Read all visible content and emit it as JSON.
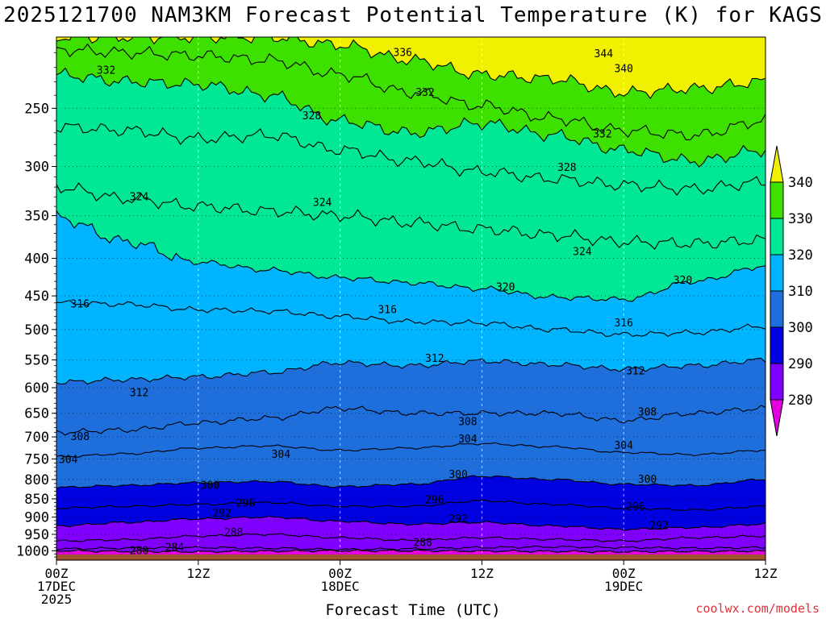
{
  "title": "2025121700 NAM3KM Forecast Potential Temperature (K) for KAGS",
  "credit": "coolwx.com/models",
  "chart_data": {
    "type": "contour",
    "title": "2025121700 NAM3KM Forecast Potential Temperature (K) for KAGS",
    "xlabel": "Forecast Time (UTC)",
    "ylabel": "",
    "units": "K",
    "y_scale": "log-pressure",
    "ylim": [
      1030,
      200
    ],
    "y_ticks": [
      "250",
      "300",
      "350",
      "400",
      "450",
      "500",
      "550",
      "600",
      "650",
      "700",
      "750",
      "800",
      "850",
      "900",
      "950",
      "1000"
    ],
    "x_range_hours": [
      0,
      60
    ],
    "x_ticks": [
      {
        "hour": 0,
        "lines": [
          "00Z",
          "17DEC",
          "2025"
        ]
      },
      {
        "hour": 12,
        "lines": [
          "12Z"
        ]
      },
      {
        "hour": 24,
        "lines": [
          "00Z",
          "18DEC"
        ]
      },
      {
        "hour": 36,
        "lines": [
          "12Z"
        ]
      },
      {
        "hour": 48,
        "lines": [
          "00Z",
          "19DEC"
        ]
      },
      {
        "hour": 60,
        "lines": [
          "12Z"
        ]
      }
    ],
    "grid": true,
    "colorbar": {
      "placement": "right",
      "ticks": [
        "340",
        "330",
        "320",
        "310",
        "300",
        "290",
        "280"
      ],
      "bands": [
        {
          "min": 270,
          "max": 280,
          "color": "#e000e0"
        },
        {
          "min": 280,
          "max": 290,
          "color": "#8000ff"
        },
        {
          "min": 290,
          "max": 300,
          "color": "#0000e0"
        },
        {
          "min": 300,
          "max": 310,
          "color": "#1e6edc"
        },
        {
          "min": 310,
          "max": 320,
          "color": "#00b4ff"
        },
        {
          "min": 320,
          "max": 330,
          "color": "#00e896"
        },
        {
          "min": 330,
          "max": 340,
          "color": "#3ee000"
        },
        {
          "min": 340,
          "max": 350,
          "color": "#f0f000"
        }
      ]
    },
    "ground_color": "#a0522d",
    "contour_interval": 4,
    "hours": [
      0,
      6,
      12,
      18,
      24,
      30,
      36,
      42,
      48,
      54,
      60
    ],
    "levels": [
      {
        "theta": 280,
        "pressure": [
          1000,
          1002,
          1003,
          1001,
          1000,
          1000,
          1001,
          1002,
          1003,
          1002,
          1001
        ]
      },
      {
        "theta": 284,
        "pressure": [
          994,
          992,
          990,
          992,
          996,
          994,
          990,
          988,
          990,
          992,
          990
        ]
      },
      {
        "theta": 288,
        "pressure": [
          970,
          966,
          955,
          950,
          960,
          968,
          960,
          965,
          970,
          960,
          955
        ]
      },
      {
        "theta": 292,
        "pressure": [
          925,
          915,
          905,
          900,
          912,
          920,
          915,
          925,
          935,
          930,
          920
        ]
      },
      {
        "theta": 296,
        "pressure": [
          875,
          870,
          865,
          860,
          870,
          870,
          855,
          865,
          875,
          880,
          870
        ]
      },
      {
        "theta": 300,
        "pressure": [
          820,
          815,
          808,
          805,
          818,
          812,
          792,
          800,
          812,
          815,
          800
        ]
      },
      {
        "theta": 304,
        "pressure": [
          745,
          738,
          725,
          720,
          730,
          725,
          715,
          722,
          735,
          740,
          730
        ]
      },
      {
        "theta": 308,
        "pressure": [
          690,
          685,
          670,
          660,
          640,
          650,
          650,
          650,
          665,
          650,
          640
        ]
      },
      {
        "theta": 312,
        "pressure": [
          590,
          585,
          580,
          572,
          555,
          560,
          552,
          558,
          566,
          560,
          550
        ]
      },
      {
        "theta": 316,
        "pressure": [
          460,
          462,
          470,
          472,
          480,
          488,
          490,
          500,
          508,
          505,
          495
        ]
      },
      {
        "theta": 320,
        "pressure": [
          352,
          380,
          405,
          415,
          425,
          432,
          440,
          452,
          455,
          430,
          410
        ]
      },
      {
        "theta": 324,
        "pressure": [
          320,
          332,
          340,
          345,
          350,
          358,
          365,
          372,
          380,
          382,
          378
        ]
      },
      {
        "theta": 328,
        "pressure": [
          265,
          268,
          275,
          272,
          285,
          295,
          305,
          312,
          318,
          322,
          315
        ]
      },
      {
        "theta": 332,
        "pressure": [
          225,
          230,
          232,
          240,
          260,
          270,
          262,
          272,
          285,
          295,
          285
        ]
      },
      {
        "theta": 336,
        "pressure": [
          208,
          210,
          212,
          215,
          225,
          238,
          248,
          258,
          268,
          272,
          260
        ]
      },
      {
        "theta": 340,
        "pressure": [
          200,
          200,
          200,
          200,
          205,
          215,
          225,
          228,
          238,
          235,
          230
        ]
      }
    ],
    "contour_labels": [
      {
        "text": "332",
        "hour": 4.2,
        "pressure": 222
      },
      {
        "text": "336",
        "hour": 29.3,
        "pressure": 210
      },
      {
        "text": "344",
        "hour": 46.3,
        "pressure": 211
      },
      {
        "text": "340",
        "hour": 48.0,
        "pressure": 221
      },
      {
        "text": "332",
        "hour": 31.2,
        "pressure": 238
      },
      {
        "text": "328",
        "hour": 21.6,
        "pressure": 256
      },
      {
        "text": "332",
        "hour": 46.2,
        "pressure": 271
      },
      {
        "text": "328",
        "hour": 43.2,
        "pressure": 301
      },
      {
        "text": "324",
        "hour": 7.0,
        "pressure": 330
      },
      {
        "text": "324",
        "hour": 22.5,
        "pressure": 336
      },
      {
        "text": "324",
        "hour": 44.5,
        "pressure": 392
      },
      {
        "text": "320",
        "hour": 38.0,
        "pressure": 438
      },
      {
        "text": "320",
        "hour": 53.0,
        "pressure": 429
      },
      {
        "text": "316",
        "hour": 2.0,
        "pressure": 462
      },
      {
        "text": "316",
        "hour": 28.0,
        "pressure": 470
      },
      {
        "text": "316",
        "hour": 48.0,
        "pressure": 490
      },
      {
        "text": "312",
        "hour": 32.0,
        "pressure": 548
      },
      {
        "text": "312",
        "hour": 49.0,
        "pressure": 570
      },
      {
        "text": "312",
        "hour": 7.0,
        "pressure": 610
      },
      {
        "text": "308",
        "hour": 34.8,
        "pressure": 668
      },
      {
        "text": "308",
        "hour": 50.0,
        "pressure": 648
      },
      {
        "text": "308",
        "hour": 2.0,
        "pressure": 700
      },
      {
        "text": "304",
        "hour": 34.8,
        "pressure": 705
      },
      {
        "text": "304",
        "hour": 48.0,
        "pressure": 720
      },
      {
        "text": "304",
        "hour": 19.0,
        "pressure": 740
      },
      {
        "text": "304",
        "hour": 1.0,
        "pressure": 752
      },
      {
        "text": "300",
        "hour": 34.0,
        "pressure": 788
      },
      {
        "text": "300",
        "hour": 50.0,
        "pressure": 800
      },
      {
        "text": "300",
        "hour": 13.0,
        "pressure": 815
      },
      {
        "text": "296",
        "hour": 16.0,
        "pressure": 862
      },
      {
        "text": "296",
        "hour": 32.0,
        "pressure": 853
      },
      {
        "text": "296",
        "hour": 49.0,
        "pressure": 872
      },
      {
        "text": "292",
        "hour": 14.0,
        "pressure": 890
      },
      {
        "text": "292",
        "hour": 34.0,
        "pressure": 905
      },
      {
        "text": "292",
        "hour": 51.0,
        "pressure": 925
      },
      {
        "text": "288",
        "hour": 15.0,
        "pressure": 945
      },
      {
        "text": "288",
        "hour": 31.0,
        "pressure": 975
      },
      {
        "text": "284",
        "hour": 10.0,
        "pressure": 990
      },
      {
        "text": "280",
        "hour": 7.0,
        "pressure": 1000
      }
    ]
  }
}
